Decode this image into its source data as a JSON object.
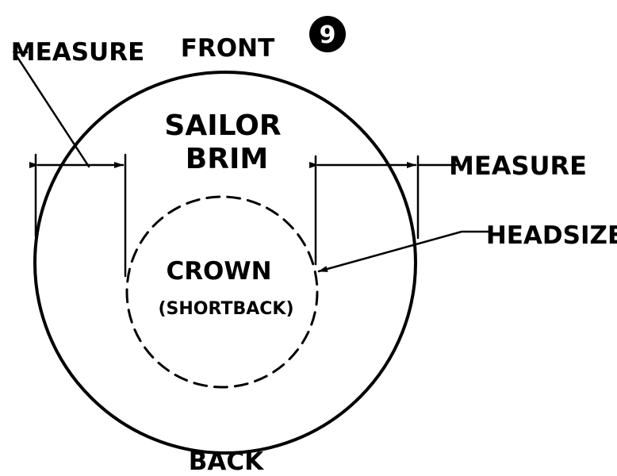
{
  "figure_number": "9",
  "labels": {
    "front": "FRONT",
    "back": "BACK",
    "brim_line1": "SAILOR",
    "brim_line2": "BRIM",
    "crown_line1": "CROWN",
    "crown_line2": "(SHORTBACK)",
    "measure_left": "MEASURE",
    "measure_right": "MEASURE",
    "headsize": "HEADSIZE"
  },
  "colors": {
    "ink": "#000000",
    "paper": "#ffffff"
  }
}
